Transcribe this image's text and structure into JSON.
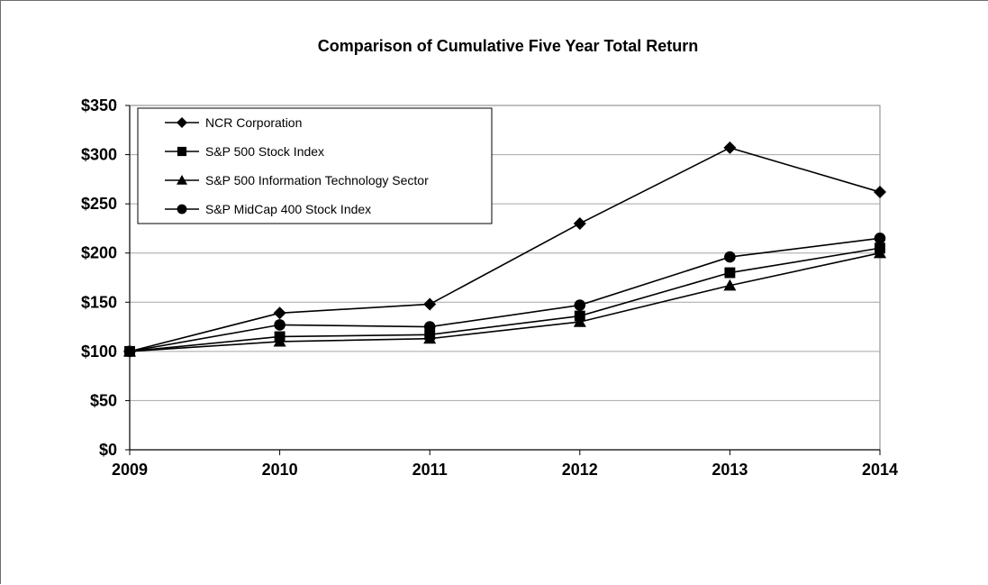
{
  "chart_data": {
    "type": "line",
    "title": "Comparison of Cumulative Five Year Total Return",
    "xlabel": "",
    "ylabel": "",
    "x": [
      "2009",
      "2010",
      "2011",
      "2012",
      "2013",
      "2014"
    ],
    "ylim": [
      0,
      350
    ],
    "yticks": [
      "$0",
      "$50",
      "$100",
      "$150",
      "$200",
      "$250",
      "$300",
      "$350"
    ],
    "grid": true,
    "legend_position": "top-left",
    "series": [
      {
        "name": "NCR Corporation",
        "marker": "diamond",
        "values": [
          100,
          139,
          148,
          230,
          307,
          262
        ]
      },
      {
        "name": "S&P 500 Stock Index",
        "marker": "square",
        "values": [
          100,
          115,
          117,
          136,
          180,
          205
        ]
      },
      {
        "name": "S&P 500 Information Technology Sector",
        "marker": "triangle",
        "values": [
          100,
          110,
          113,
          130,
          167,
          200
        ]
      },
      {
        "name": "S&P MidCap 400 Stock Index",
        "marker": "circle",
        "values": [
          100,
          127,
          125,
          147,
          196,
          215
        ]
      }
    ],
    "colors": {
      "line": "#000000",
      "grid": "#a6a6a6"
    }
  }
}
